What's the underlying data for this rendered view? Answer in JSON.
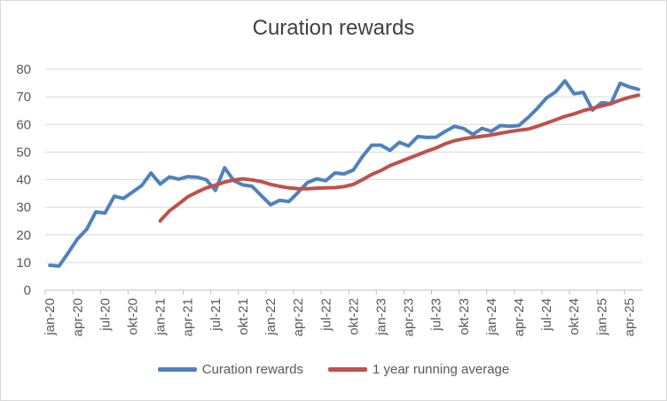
{
  "chart_data": {
    "type": "line",
    "title": "Curation rewards",
    "xlabel": "",
    "ylabel": "",
    "ylim": [
      0,
      80
    ],
    "yticks": [
      "0",
      "10",
      "20",
      "30",
      "40",
      "50",
      "60",
      "70",
      "80"
    ],
    "grid": true,
    "legend_position": "bottom",
    "x_ticks": [
      "jan-20",
      "apr-20",
      "jul-20",
      "okt-20",
      "jan-21",
      "apr-21",
      "jul-21",
      "okt-21",
      "jan-22",
      "apr-22",
      "jul-22",
      "okt-22",
      "jan-23",
      "apr-23",
      "jul-23",
      "okt-23",
      "jan-24",
      "apr-24",
      "jul-24",
      "okt-24",
      "jan-25",
      "apr-25"
    ],
    "x_start": "2020-01",
    "series": [
      {
        "name": "Curation rewards",
        "color": "#4f81bd",
        "values": [
          9,
          8.7,
          13.5,
          18.5,
          22,
          28.3,
          27.9,
          34,
          33.2,
          35.5,
          37.9,
          42.4,
          38.4,
          41,
          40.2,
          41.1,
          40.9,
          40,
          36.1,
          44.3,
          39.6,
          38.1,
          37.6,
          34.2,
          30.9,
          32.5,
          32.1,
          35.4,
          38.9,
          40.3,
          39.6,
          42.4,
          42.1,
          43.5,
          48.4,
          52.5,
          52.5,
          50.6,
          53.5,
          52.2,
          55.6,
          55.3,
          55.4,
          57.5,
          59.3,
          58.5,
          56.4,
          58.6,
          57.5,
          59.6,
          59.3,
          59.6,
          62.5,
          65.8,
          69.6,
          71.8,
          75.8,
          71.1,
          71.6,
          65.2,
          67.9,
          67.5,
          74.9,
          73.6,
          72.7
        ]
      },
      {
        "name": "1 year running average",
        "color": "#c0504d",
        "values": [
          null,
          null,
          null,
          null,
          null,
          null,
          null,
          null,
          null,
          null,
          null,
          null,
          25.1,
          28.7,
          31.2,
          33.8,
          35.5,
          37.0,
          38.0,
          39.1,
          39.9,
          40.3,
          39.9,
          39.3,
          38.3,
          37.6,
          37.0,
          36.7,
          36.7,
          36.9,
          37.0,
          37.1,
          37.5,
          38.3,
          40.0,
          41.9,
          43.3,
          45.1,
          46.4,
          47.7,
          49.0,
          50.3,
          51.5,
          53.0,
          54.1,
          54.8,
          55.3,
          55.7,
          56.2,
          56.8,
          57.4,
          57.9,
          58.3,
          59.3,
          60.5,
          61.7,
          62.9,
          63.8,
          65.0,
          65.8,
          66.7,
          67.5,
          68.8,
          69.8,
          70.6
        ]
      }
    ]
  },
  "legend": {
    "items": [
      {
        "label": "Curation rewards",
        "color": "#4f81bd"
      },
      {
        "label": "1 year running average",
        "color": "#c0504d"
      }
    ]
  }
}
